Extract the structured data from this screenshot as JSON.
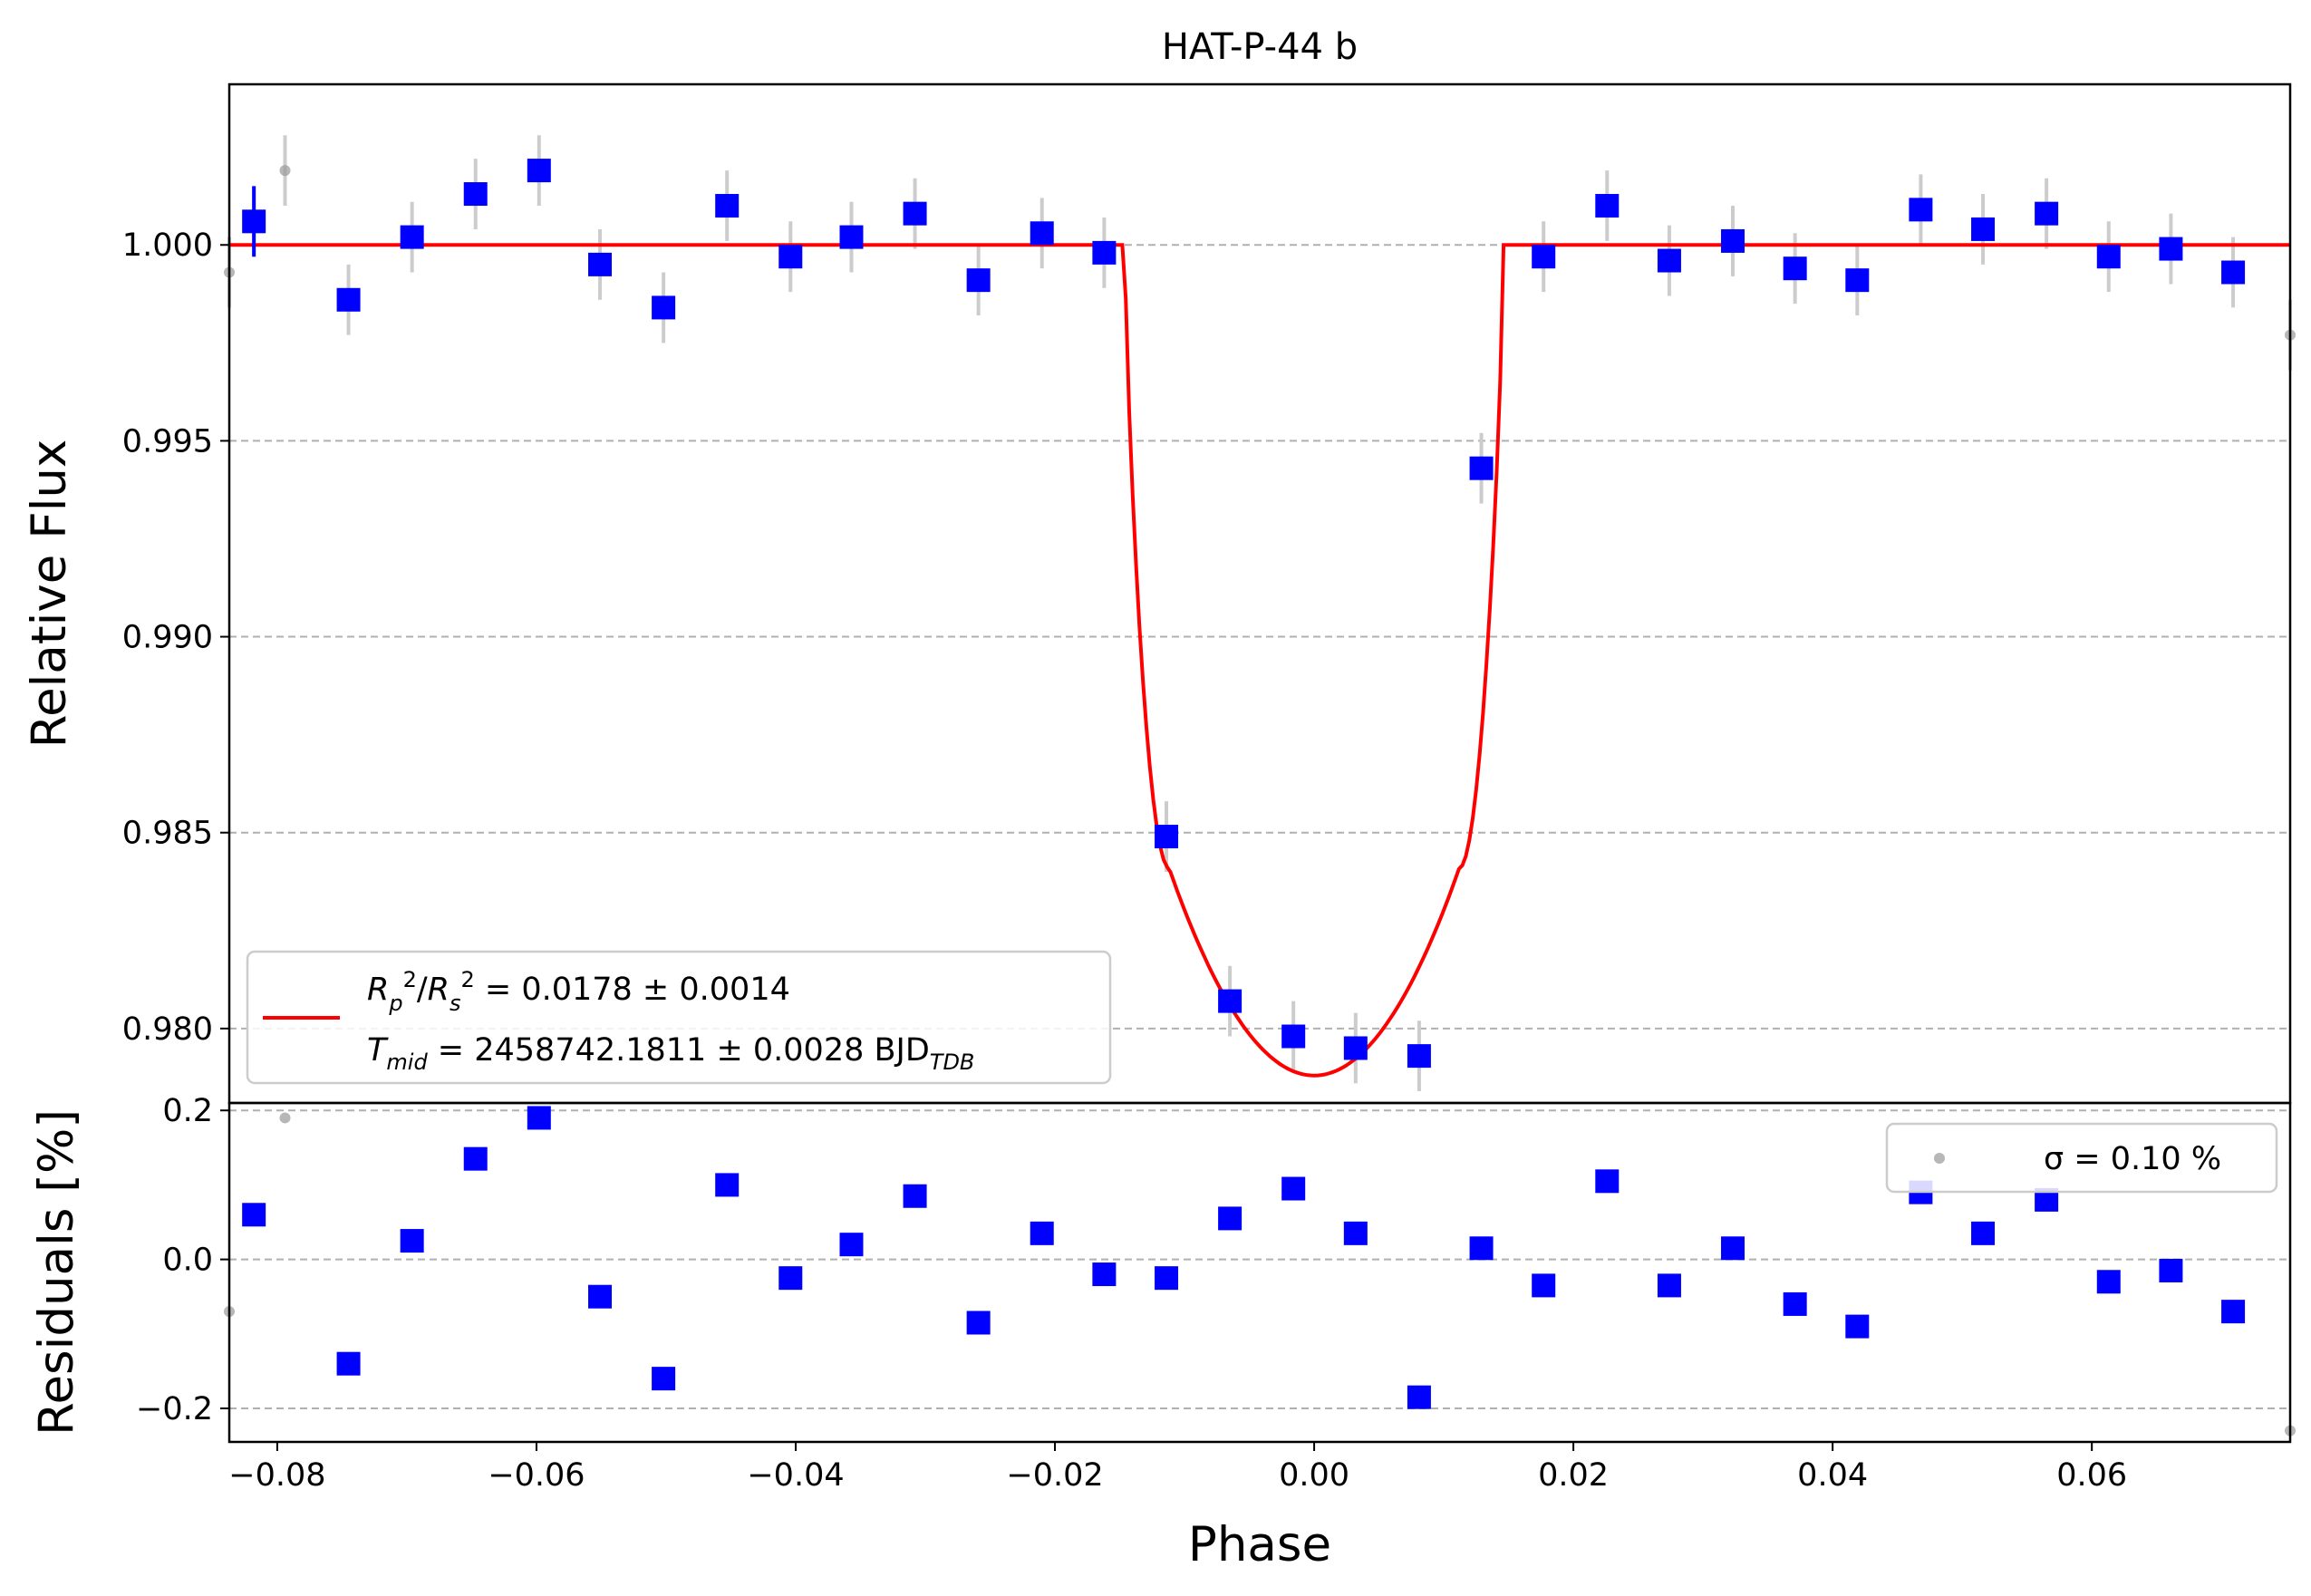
{
  "chart_data": [
    {
      "type": "scatter",
      "title": "HAT-P-44 b",
      "xlabel": "",
      "ylabel": "Relative Flux",
      "xlim": [
        -0.0837,
        0.0753
      ],
      "ylim": [
        0.9781,
        1.0041
      ],
      "yticks": [
        1.0,
        0.995,
        0.99,
        0.985,
        0.98
      ],
      "ytick_labels": [
        "1.000",
        "0.995",
        "0.990",
        "0.985",
        "0.980"
      ],
      "grid": "y-dashed",
      "legend_position": "lower-left",
      "series": [
        {
          "name": "binned",
          "color": "#0000ff",
          "marker": "square",
          "x": [
            -0.0818,
            -0.0745,
            -0.0696,
            -0.0647,
            -0.0598,
            -0.0551,
            -0.0502,
            -0.0453,
            -0.0404,
            -0.0357,
            -0.0308,
            -0.0259,
            -0.021,
            -0.0162,
            -0.0114,
            -0.0065,
            -0.0016,
            0.0032,
            0.0081,
            0.0129,
            0.0177,
            0.0226,
            0.0274,
            0.0323,
            0.0371,
            0.0419,
            0.0468,
            0.0516,
            0.0565,
            0.0613,
            0.0661,
            0.0709
          ],
          "y": [
            1.0006,
            0.9986,
            1.0002,
            1.0013,
            1.0019,
            0.9995,
            0.9984,
            1.001,
            0.9997,
            1.0002,
            1.0008,
            0.9991,
            1.0003,
            0.9998,
            0.9849,
            0.9807,
            0.9798,
            0.9795,
            0.9793,
            0.9943,
            0.9997,
            1.001,
            0.9996,
            1.0001,
            0.9994,
            0.9991,
            1.0009,
            1.0004,
            1.0008,
            0.9997,
            0.9999,
            0.9993
          ]
        },
        {
          "name": "raw",
          "color": "#999999",
          "marker": "circle",
          "x": [
            -0.0837,
            -0.0794,
            0.0753
          ],
          "y": [
            0.9993,
            1.0019,
            0.9977
          ]
        },
        {
          "name": "R p²/R s² = 0.0178 ± 0.0014",
          "color": "#ff0000",
          "type": "line",
          "model": {
            "depth": 0.0212,
            "t_start": -0.0146,
            "t_end": 0.0146,
            "t_flat_start": -0.0112,
            "t_flat_end": 0.0112,
            "baseline": 1.0
          }
        }
      ],
      "legend_entries": [
        {
          "math": "R_p^2/R_s^2",
          "text": " = 0.0178 ± 0.0014"
        },
        {
          "math": "T_mid",
          "text": " = 2458742.1811 ± 0.0028 BJD",
          "subscript": "TDB"
        }
      ]
    },
    {
      "type": "scatter",
      "title": "",
      "xlabel": "Phase",
      "ylabel": "Residuals [%]",
      "xlim": [
        -0.0837,
        0.0753
      ],
      "ylim": [
        -0.245,
        0.21
      ],
      "xticks": [
        -0.08,
        -0.06,
        -0.04,
        -0.02,
        0.0,
        0.02,
        0.04,
        0.06
      ],
      "xtick_labels": [
        "−0.08",
        "−0.06",
        "−0.04",
        "−0.02",
        "0.00",
        "0.02",
        "0.04",
        "0.06"
      ],
      "yticks": [
        0.2,
        0.0,
        -0.2
      ],
      "ytick_labels": [
        "0.2",
        "0.0",
        "−0.2"
      ],
      "grid": "y-dashed",
      "legend_position": "top-right",
      "legend_label": "σ = 0.10 %",
      "series": [
        {
          "name": "binned-residuals",
          "color": "#0000ff",
          "marker": "square",
          "x": [
            -0.0818,
            -0.0745,
            -0.0696,
            -0.0647,
            -0.0598,
            -0.0551,
            -0.0502,
            -0.0453,
            -0.0404,
            -0.0357,
            -0.0308,
            -0.0259,
            -0.021,
            -0.0162,
            -0.0114,
            -0.0065,
            -0.0016,
            0.0032,
            0.0081,
            0.0129,
            0.0177,
            0.0226,
            0.0274,
            0.0323,
            0.0371,
            0.0419,
            0.0468,
            0.0516,
            0.0565,
            0.0613,
            0.0661,
            0.0709
          ],
          "y": [
            0.06,
            -0.14,
            0.025,
            0.135,
            0.19,
            -0.05,
            -0.16,
            0.1,
            -0.025,
            0.02,
            0.085,
            -0.085,
            0.035,
            -0.02,
            -0.025,
            0.055,
            0.095,
            0.035,
            -0.185,
            0.015,
            -0.035,
            0.105,
            -0.035,
            0.015,
            -0.06,
            -0.09,
            0.09,
            0.035,
            0.08,
            -0.03,
            -0.015,
            -0.07
          ]
        },
        {
          "name": "raw-residuals",
          "color": "#999999",
          "marker": "circle",
          "x": [
            -0.0837,
            -0.0794,
            0.0753
          ],
          "y": [
            -0.07,
            0.19,
            -0.23
          ]
        }
      ]
    }
  ]
}
